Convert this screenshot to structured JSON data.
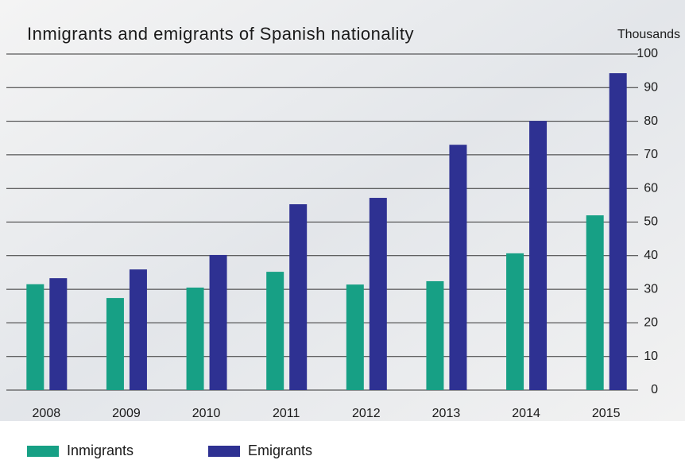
{
  "chart_data": {
    "type": "bar",
    "title": "Inmigrants and emigrants of Spanish nationality",
    "y_axis_label": "Thousands",
    "categories": [
      "2008",
      "2009",
      "2010",
      "2011",
      "2012",
      "2013",
      "2014",
      "2015"
    ],
    "series": [
      {
        "name": "Inmigrants",
        "color": "#17a085",
        "values": [
          31.5,
          27.4,
          30.5,
          35.2,
          31.4,
          32.4,
          40.7,
          52
        ]
      },
      {
        "name": "Emigrants",
        "color": "#2e3192",
        "values": [
          33.3,
          35.9,
          40.2,
          55.3,
          57.2,
          73,
          80.1,
          94.3
        ]
      }
    ],
    "ylim": [
      0,
      100
    ],
    "yticks": [
      0,
      10,
      20,
      30,
      40,
      50,
      60,
      70,
      80,
      90,
      100
    ],
    "grid": true
  }
}
